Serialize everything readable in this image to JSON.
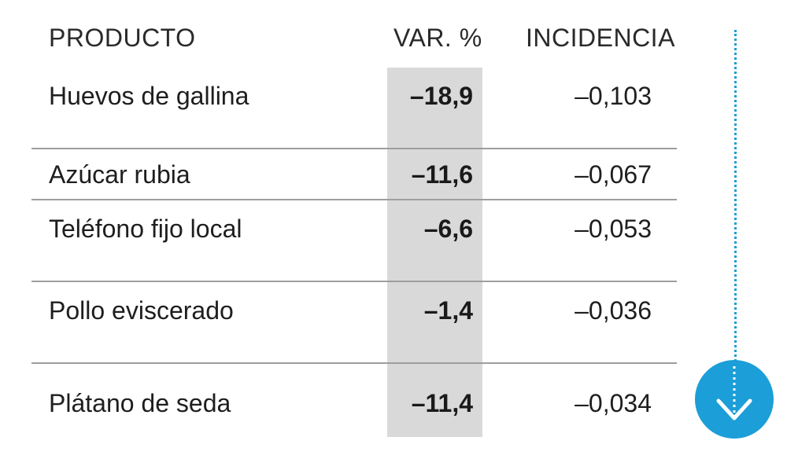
{
  "headers": {
    "product": "PRODUCTO",
    "variation": "VAR. %",
    "incidence": "INCIDENCIA"
  },
  "rows": [
    {
      "product": "Huevos de gallina",
      "variation": "–18,9",
      "incidence": "–0,103"
    },
    {
      "product": "Azúcar rubia",
      "variation": "–11,6",
      "incidence": "–0,067"
    },
    {
      "product": "Teléfono fijo local",
      "variation": "–6,6",
      "incidence": "–0,053"
    },
    {
      "product": "Pollo eviscerado",
      "variation": "–1,4",
      "incidence": "–0,036"
    },
    {
      "product": "Plátano de seda",
      "variation": "–11,4",
      "incidence": "–0,034"
    }
  ],
  "chart_data": {
    "type": "table",
    "columns": [
      "PRODUCTO",
      "VAR. %",
      "INCIDENCIA"
    ],
    "rows": [
      [
        "Huevos de gallina",
        -18.9,
        -0.103
      ],
      [
        "Azúcar rubia",
        -11.6,
        -0.067
      ],
      [
        "Teléfono fijo local",
        -6.6,
        -0.053
      ],
      [
        "Pollo eviscerado",
        -1.4,
        -0.036
      ],
      [
        "Plátano de seda",
        -11.4,
        -0.034
      ]
    ]
  },
  "colors": {
    "accent": "#1c9ed8",
    "highlight_column": "#d9d9d9",
    "divider": "#9e9e9e",
    "text": "#1e1e1e"
  },
  "icons": {
    "scroll_down": "chevron-down-icon"
  }
}
